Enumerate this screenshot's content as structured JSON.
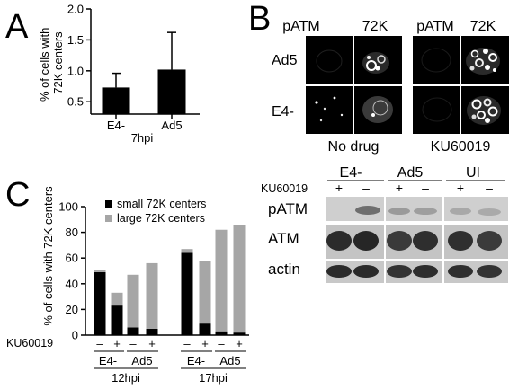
{
  "panels": {
    "a": {
      "letter": "A"
    },
    "b": {
      "letter": "B",
      "col_labels": [
        "pATM",
        "72K",
        "pATM",
        "72K"
      ],
      "row_labels": [
        "Ad5",
        "E4-"
      ],
      "group_labels": [
        "No drug",
        "KU60019"
      ]
    },
    "c": {
      "letter": "C"
    },
    "blot": {
      "group_labels": [
        "E4-",
        "Ad5",
        "UI"
      ],
      "treatment_label": "KU60019",
      "lane_signs": [
        "+",
        "–",
        "+",
        "–",
        "+",
        "–"
      ],
      "row_labels": [
        "pATM",
        "ATM",
        "actin"
      ]
    }
  },
  "chart_data": [
    {
      "type": "bar",
      "panel": "A",
      "ylabel": "% of cells with\n72K centers",
      "ylabel_lines": [
        "% of cells with",
        "72K centers"
      ],
      "categories": [
        "E4-",
        "Ad5"
      ],
      "xlabel": "7hpi",
      "values": [
        0.73,
        1.02
      ],
      "error": [
        0.23,
        0.6
      ],
      "ylim": [
        0.3,
        2.0
      ],
      "yticks": [
        "0.5",
        "1.0",
        "1.5",
        "2.0"
      ],
      "colors": {
        "bar": "#000000"
      }
    },
    {
      "type": "bar",
      "panel": "C",
      "stacked": true,
      "ylabel": "% of cells with 72K centers",
      "ylim": [
        0,
        100
      ],
      "yticks": [
        "0",
        "20",
        "40",
        "60",
        "80",
        "100"
      ],
      "treatment_label": "KU60019",
      "categories": [
        "E4- –",
        "E4- +",
        "Ad5 –",
        "Ad5 +",
        "E4- –",
        "E4- +",
        "Ad5 –",
        "Ad5 +"
      ],
      "lane_signs": [
        "–",
        "+",
        "–",
        "+",
        "–",
        "+",
        "–",
        "+"
      ],
      "virus_labels": [
        "E4-",
        "Ad5",
        "E4-",
        "Ad5"
      ],
      "time_labels": [
        "12hpi",
        "17hpi"
      ],
      "series": [
        {
          "name": "small 72K centers",
          "color": "#000000",
          "values": [
            49,
            23,
            6,
            5,
            64,
            9,
            3,
            2
          ]
        },
        {
          "name": "large 72K centers",
          "color": "#a6a6a6",
          "values": [
            2,
            10,
            41,
            51,
            3,
            49,
            79,
            84
          ]
        }
      ],
      "legend": "top-left"
    }
  ]
}
